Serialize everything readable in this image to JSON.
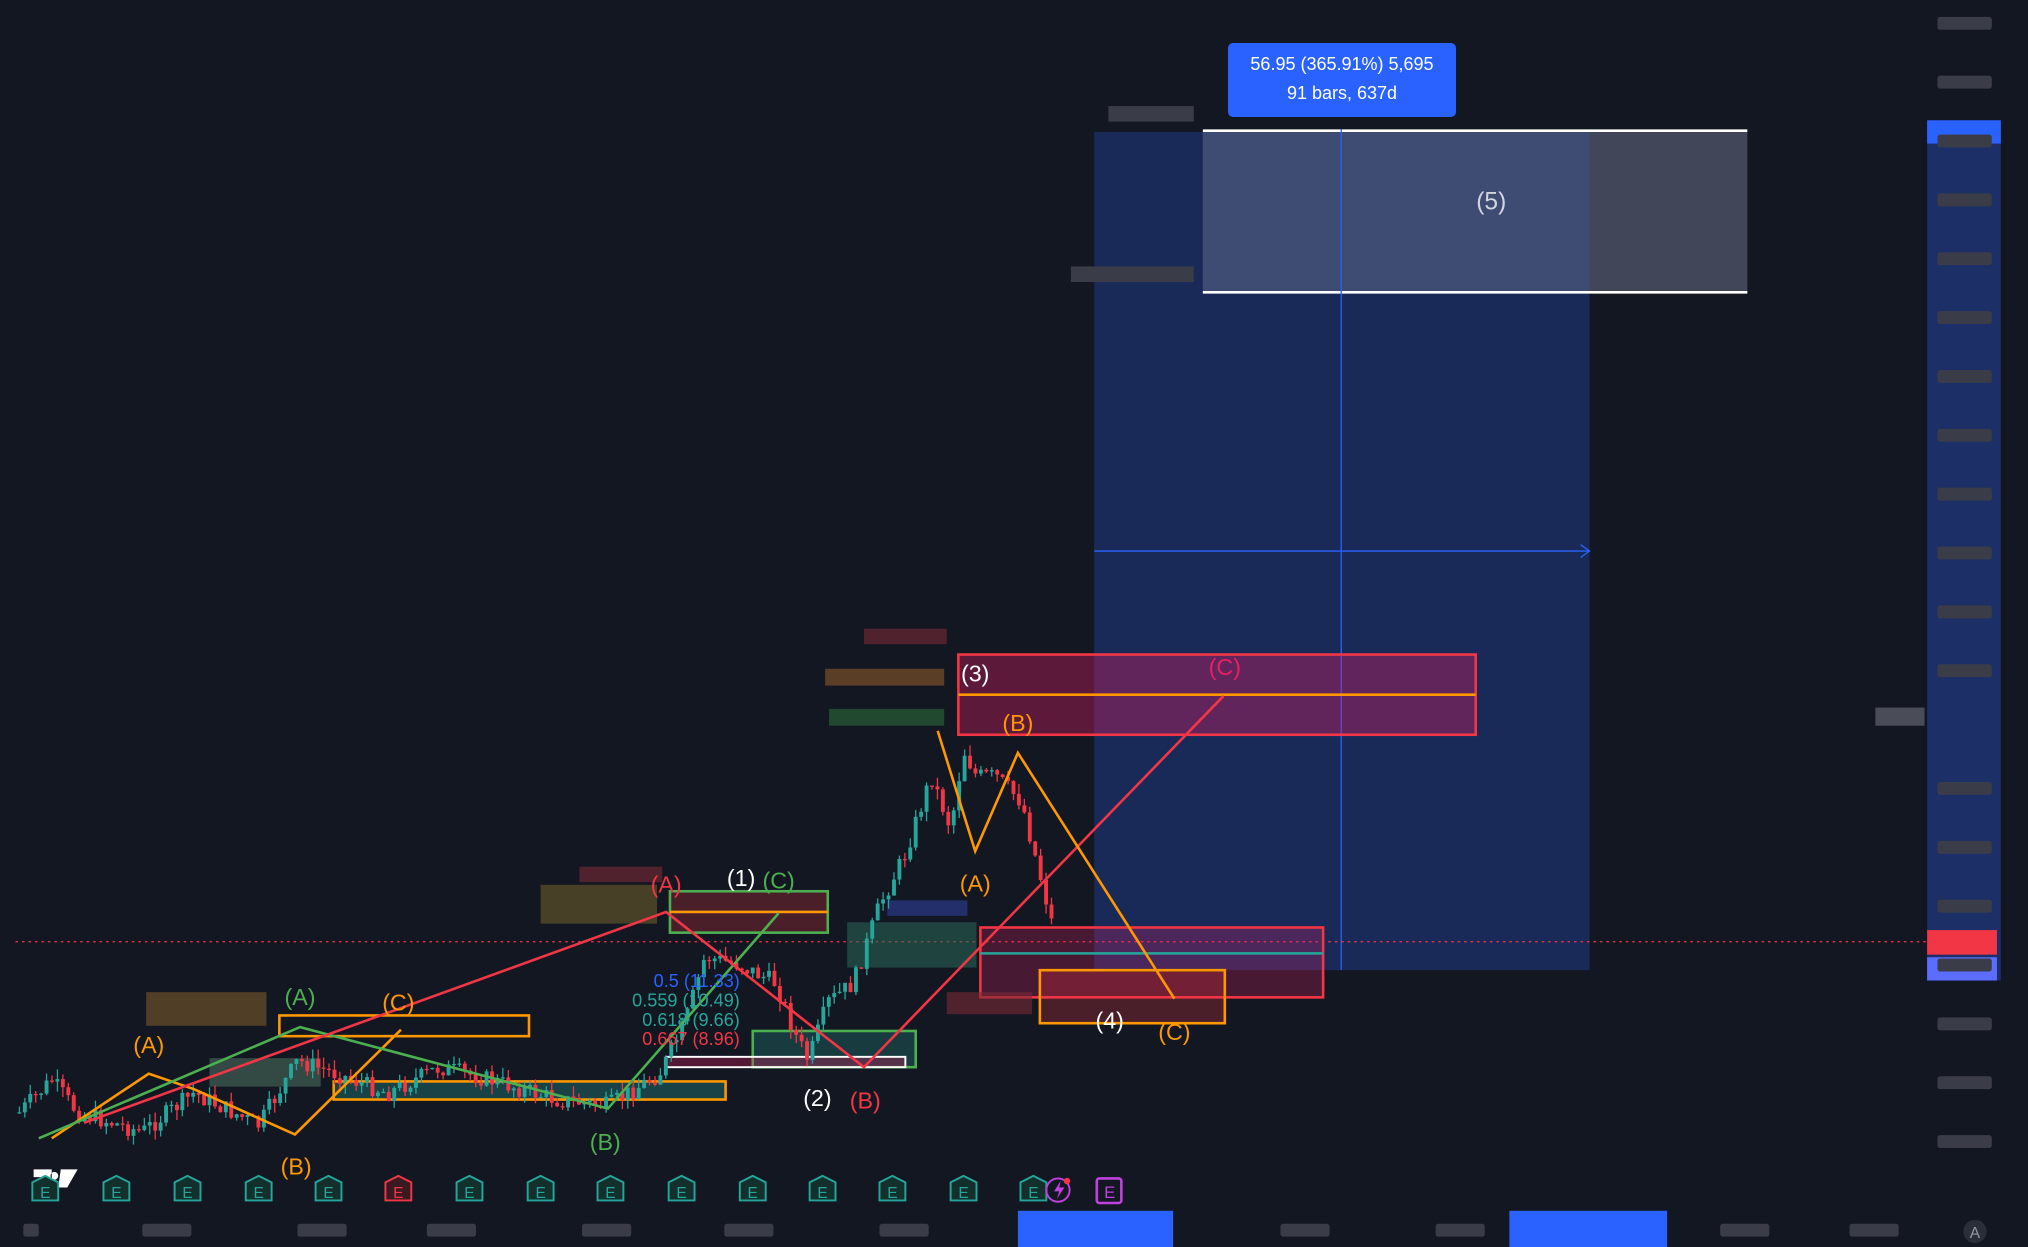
{
  "measure_tooltip": {
    "line1": "56.95 (365.91%) 5,695",
    "line2": "91 bars, 637d"
  },
  "colors": {
    "background": "#131722",
    "measure_fill": "#2962ff",
    "up_candle": "#26a69a",
    "down_candle": "#f23645",
    "orange": "#ff9800",
    "green": "#4caf50",
    "red": "#f23645",
    "magenta": "#e91e63"
  },
  "wave_labels": {
    "w5": "(5)",
    "w3": "(3)",
    "w1": "(1)",
    "w2": "(2)",
    "w4": "(4)",
    "a_orange_left": "(A)",
    "b_orange_left": "(B)",
    "c_orange_left": "(C)",
    "a_green": "(A)",
    "b_green": "(B)",
    "c_green": "(C)",
    "a_red": "(A)",
    "b_red": "(B)",
    "c_magenta": "(C)",
    "a_orange_right": "(A)",
    "b_orange_right": "(B)",
    "c_orange_right": "(C)"
  },
  "fib_levels": [
    {
      "label": "0.5 (11.33)",
      "color": "#2962ff"
    },
    {
      "label": "0.559 (10.49)",
      "color": "#26a69a"
    },
    {
      "label": "0.618 (9.66)",
      "color": "#26a69a"
    },
    {
      "label": "0.667 (8.96)",
      "color": "#f23645"
    }
  ],
  "events": {
    "earnings_icon": "E",
    "earnings_count": 15,
    "logo": "TV",
    "auto_scale": "A"
  }
}
